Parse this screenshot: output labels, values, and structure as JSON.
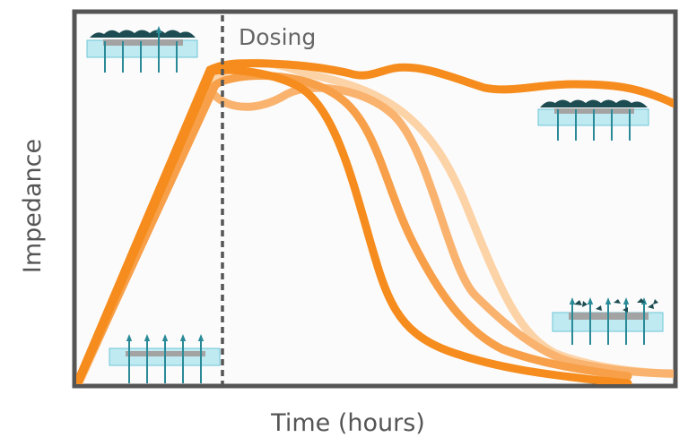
{
  "figure": {
    "xlabel": "Time (hours)",
    "ylabel": "Impedance",
    "dosing_label": "Dosing"
  },
  "colors": {
    "frame": "#555555",
    "plot_background": "#fcfbfb",
    "dosing_line": "#555555",
    "curve_strongest": "#f58c1d",
    "curve_medium": "#f7a049",
    "curve_light": "#f9b36f",
    "curve_lightest": "#fcd3a6",
    "substrate_fill": "#bfeaf1",
    "substrate_stroke": "#6cc6d6",
    "electrode": "#a3a3a3",
    "cell_dark": "#1d4d52",
    "arrow": "#2a8a97"
  },
  "icons": [
    {
      "name": "confluent-cell-monolayer-icon",
      "position": "top-left"
    },
    {
      "name": "confluent-cell-monolayer-icon",
      "position": "right-upper"
    },
    {
      "name": "empty-electrode-icon",
      "position": "bottom-left"
    },
    {
      "name": "detached-cells-electrode-icon",
      "position": "right-lower"
    }
  ]
}
